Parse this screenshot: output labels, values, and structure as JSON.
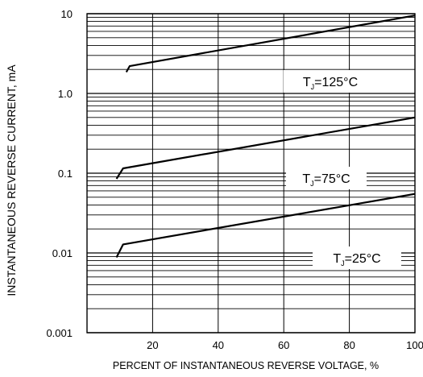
{
  "chart_data": {
    "type": "line",
    "title": "",
    "xlabel": "PERCENT OF INSTANTANEOUS REVERSE VOLTAGE, %",
    "ylabel": "INSTANTANEOUS REVERSE CURRENT, mA",
    "xlim": [
      0,
      100
    ],
    "ylim": [
      0.001,
      10
    ],
    "yscale": "log",
    "x_ticks": [
      20,
      40,
      60,
      80,
      100
    ],
    "y_ticks": [
      0.001,
      0.01,
      0.1,
      1.0,
      10
    ],
    "x_tick_labels": [
      "20",
      "40",
      "60",
      "80",
      "100"
    ],
    "y_tick_labels": [
      "0.001",
      "0.01",
      "0.1",
      "1.0",
      "10"
    ],
    "grid": true,
    "series": [
      {
        "name": "TJ=125°C",
        "label_main": "T",
        "label_sub": "J",
        "label_rest": "=125°C",
        "x": [
          12,
          13,
          100
        ],
        "y": [
          1.85,
          2.2,
          9.5
        ]
      },
      {
        "name": "TJ=75°C",
        "label_main": "T",
        "label_sub": "J",
        "label_rest": "=75°C",
        "x": [
          9,
          11,
          100
        ],
        "y": [
          0.085,
          0.115,
          0.5
        ]
      },
      {
        "name": "TJ=25°C",
        "label_main": "T",
        "label_sub": "J",
        "label_rest": "=25°C",
        "x": [
          9,
          11,
          100
        ],
        "y": [
          0.0088,
          0.0128,
          0.055
        ]
      }
    ]
  }
}
